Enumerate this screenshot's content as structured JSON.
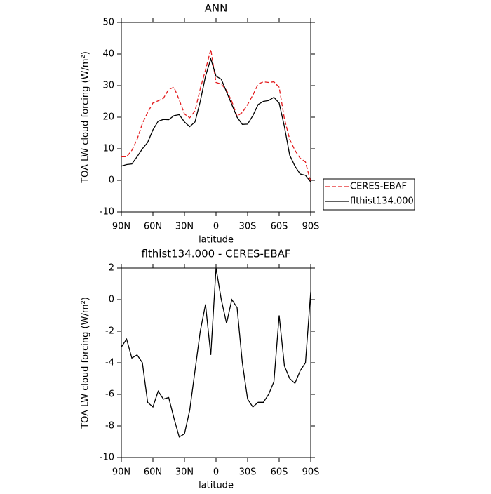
{
  "chart_data": [
    {
      "type": "line",
      "title": "ANN",
      "xlabel": "latitude",
      "ylabel": "TOA LW cloud forcing (W/m²)",
      "x": [
        90,
        85,
        80,
        75,
        70,
        65,
        60,
        55,
        50,
        45,
        40,
        35,
        30,
        25,
        20,
        15,
        10,
        5,
        0,
        -5,
        -10,
        -15,
        -20,
        -25,
        -30,
        -35,
        -40,
        -45,
        -50,
        -55,
        -60,
        -65,
        -70,
        -75,
        -80,
        -85,
        -90
      ],
      "series": [
        {
          "name": "CERES-EBAF",
          "color": "#e31a1c",
          "line_style": "dashed",
          "values": [
            7.5,
            7.5,
            9.5,
            13,
            18,
            21.5,
            24.5,
            25.2,
            26,
            28.8,
            29.5,
            25.5,
            21,
            19.8,
            22,
            29,
            35,
            41.5,
            31,
            30.5,
            28.5,
            25,
            20.3,
            21.5,
            24,
            27,
            30.5,
            31.2,
            31,
            31.2,
            29.5,
            19.5,
            13,
            9.5,
            7,
            5.8,
            -0.5
          ]
        },
        {
          "name": "flthist134.000",
          "color": "#000000",
          "line_style": "solid",
          "values": [
            4.5,
            5,
            5.2,
            7.5,
            10,
            12,
            16,
            18.7,
            19.3,
            19.2,
            20.5,
            20.8,
            18.5,
            17,
            18.5,
            25,
            33,
            38.5,
            33,
            32,
            28,
            24,
            20,
            17.7,
            17.8,
            20.5,
            24,
            25,
            25.3,
            26.3,
            24.5,
            17,
            8,
            4.5,
            2,
            1.6,
            -0.5
          ]
        }
      ],
      "xlim": [
        90,
        -90
      ],
      "xticks": [
        {
          "value": 90,
          "label": "90N"
        },
        {
          "value": 60,
          "label": "60N"
        },
        {
          "value": 30,
          "label": "30N"
        },
        0,
        {
          "value": -30,
          "label": "30S"
        },
        {
          "value": -60,
          "label": "60S"
        },
        {
          "value": -90,
          "label": "90S"
        }
      ],
      "ylim": [
        -10,
        50
      ],
      "yticks": [
        -10,
        0,
        10,
        20,
        30,
        40,
        50
      ],
      "legend": "right"
    },
    {
      "type": "line",
      "title": "flthist134.000 - CERES-EBAF",
      "xlabel": "latitude",
      "ylabel": "TOA LW cloud forcing (W/m²)",
      "x": [
        90,
        85,
        80,
        75,
        70,
        65,
        60,
        55,
        50,
        45,
        40,
        35,
        30,
        25,
        20,
        15,
        10,
        5,
        0,
        -5,
        -10,
        -15,
        -20,
        -25,
        -30,
        -35,
        -40,
        -45,
        -50,
        -55,
        -60,
        -65,
        -70,
        -75,
        -80,
        -85,
        -90
      ],
      "color": "#000000",
      "values": [
        -3,
        -2.5,
        -3.7,
        -3.5,
        -4,
        -6.5,
        -6.8,
        -5.8,
        -6.3,
        -6.2,
        -7.5,
        -8.7,
        -8.5,
        -7,
        -4.5,
        -2,
        -0.3,
        -3.5,
        2,
        0,
        -1.5,
        0,
        -0.5,
        -4,
        -6.3,
        -6.8,
        -6.5,
        -6.5,
        -6,
        -5.2,
        -1,
        -4.2,
        -5,
        -5.3,
        -4.5,
        -4,
        0.5
      ],
      "xlim": [
        90,
        -90
      ],
      "xticks": [
        {
          "value": 90,
          "label": "90N"
        },
        {
          "value": 60,
          "label": "60N"
        },
        {
          "value": 30,
          "label": "30N"
        },
        0,
        {
          "value": -30,
          "label": "30S"
        },
        {
          "value": -60,
          "label": "60S"
        },
        {
          "value": -90,
          "label": "90S"
        }
      ],
      "ylim": [
        -10,
        2
      ],
      "yticks": [
        -10,
        -8,
        -6,
        -4,
        -2,
        0,
        2
      ]
    }
  ]
}
